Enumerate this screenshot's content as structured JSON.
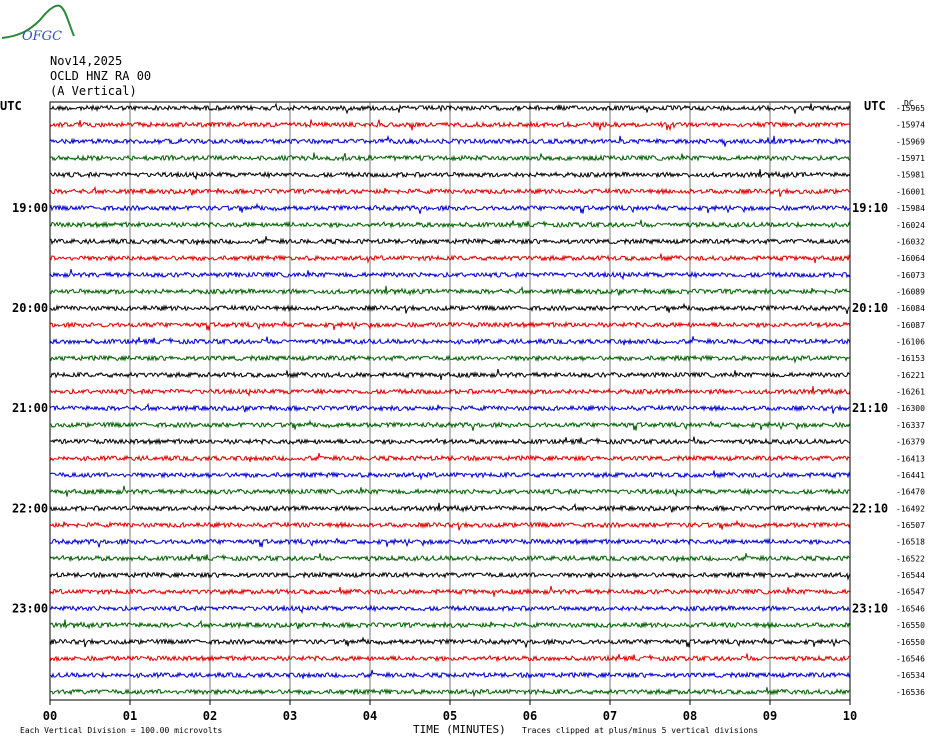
{
  "header": {
    "logo_text": "OFGC",
    "date": "Nov14,2025",
    "station": "OCLD HNZ RA 00",
    "component": "(A Vertical)"
  },
  "axes": {
    "left_label": "UTC",
    "right_label": "UTC",
    "dc_label": "DC",
    "left_times": [
      "19:00",
      "20:00",
      "21:00",
      "22:00",
      "23:00"
    ],
    "right_times": [
      "19:10",
      "20:10",
      "21:10",
      "22:10",
      "23:10"
    ],
    "x_ticks": [
      "00",
      "01",
      "02",
      "03",
      "04",
      "05",
      "06",
      "07",
      "08",
      "09",
      "10"
    ],
    "xlabel": "TIME (MINUTES)"
  },
  "footer": {
    "scale_note": "Each Vertical Division =  100.00 microvolts",
    "clip_note": "Traces clipped at plus/minus 5 vertical divisions"
  },
  "colors": {
    "trace_cycle": [
      "#000000",
      "#e00000",
      "#0000d0",
      "#006000"
    ],
    "grid": "#000000"
  },
  "chart_data": {
    "type": "line",
    "title": "",
    "xlabel": "TIME (MINUTES)",
    "ylabel": "",
    "xlim": [
      0,
      10
    ],
    "trace_minutes_span": 10,
    "dc_offsets": [
      -15965,
      -15974,
      -15969,
      -15971,
      -15981,
      -16001,
      -15984,
      -16024,
      -16032,
      -16064,
      -16073,
      -16089,
      -16084,
      -16087,
      -16106,
      -16153,
      -16221,
      -16261,
      -16300,
      -16337,
      -16379,
      -16413,
      -16441,
      -16470,
      -16492,
      -16507,
      -16518,
      -16522,
      -16544,
      -16547,
      -16546,
      -16550,
      -16550,
      -16546,
      -16534,
      -16536
    ]
  }
}
